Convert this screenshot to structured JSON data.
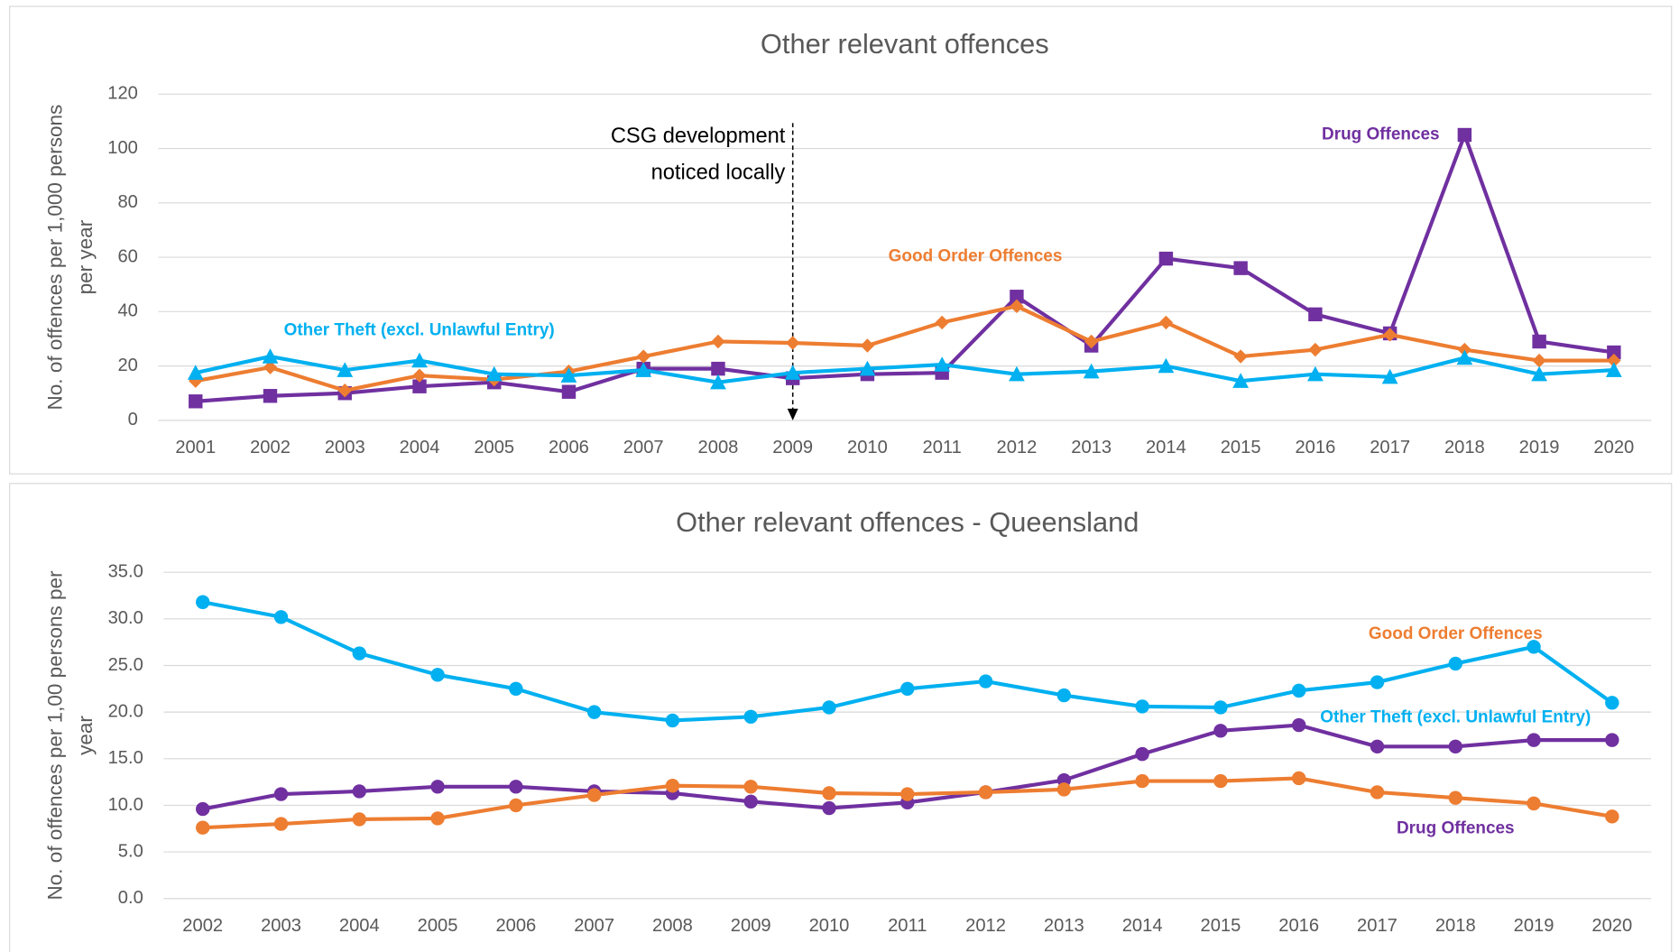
{
  "chart_data": [
    {
      "type": "line",
      "title": "Other relevant offences",
      "y_label": [
        "No. of offences per 1,000 persons",
        "per year"
      ],
      "categories": [
        "2001",
        "2002",
        "2003",
        "2004",
        "2005",
        "2006",
        "2007",
        "2008",
        "2009",
        "2010",
        "2011",
        "2012",
        "2013",
        "2014",
        "2015",
        "2016",
        "2017",
        "2018",
        "2019",
        "2020"
      ],
      "ylim": [
        0,
        120
      ],
      "yticks": [
        0,
        20,
        40,
        60,
        80,
        100,
        120
      ],
      "grid": true,
      "annotations": [
        {
          "text": [
            "CSG development",
            "noticed locally"
          ]
        }
      ],
      "series": [
        {
          "name": "Drug Offences",
          "color": "#7030a0",
          "marker": "square",
          "values": [
            7,
            9,
            10,
            12.5,
            14,
            10.5,
            19,
            19,
            15.5,
            17,
            17.5,
            45.5,
            27.5,
            59.5,
            56,
            39,
            32,
            105,
            29,
            25
          ]
        },
        {
          "name": "Good Order Offences",
          "color": "#ed7d31",
          "marker": "diamond",
          "values": [
            14.5,
            19.5,
            11,
            16.5,
            15,
            18,
            23.5,
            29,
            28.5,
            27.5,
            36,
            42,
            29,
            36,
            23.5,
            26,
            31.5,
            26,
            22,
            22
          ]
        },
        {
          "name": "Other Theft (excl. Unlawful Entry)",
          "color": "#00b0f0",
          "marker": "triangle",
          "values": [
            17.5,
            23.5,
            18.5,
            22,
            17,
            16.5,
            18.5,
            14,
            17.5,
            19,
            20.5,
            17,
            18,
            20,
            14.5,
            17,
            16,
            23,
            17,
            18.5
          ]
        }
      ]
    },
    {
      "type": "line",
      "title": "Other relevant offences - Queensland",
      "y_label": [
        "No. of offences per 1,00 persons per",
        "year"
      ],
      "categories": [
        "2002",
        "2003",
        "2004",
        "2005",
        "2006",
        "2007",
        "2008",
        "2009",
        "2010",
        "2011",
        "2012",
        "2013",
        "2014",
        "2015",
        "2016",
        "2017",
        "2018",
        "2019",
        "2020"
      ],
      "ylim": [
        0,
        35
      ],
      "yticks": [
        {
          "value": 0,
          "label": "0.0"
        },
        {
          "value": 5,
          "label": "5.0"
        },
        {
          "value": 10,
          "label": "10.0"
        },
        {
          "value": 15,
          "label": "15.0"
        },
        {
          "value": 20,
          "label": "20.0"
        },
        {
          "value": 25,
          "label": "25.0"
        },
        {
          "value": 30,
          "label": "30.0"
        },
        {
          "value": 35,
          "label": "35.0"
        }
      ],
      "grid": true,
      "series": [
        {
          "name": "Other Theft (excl. Unlawful Entry)",
          "color": "#00b0f0",
          "marker": "circle",
          "values": [
            31.8,
            30.2,
            26.3,
            24.0,
            22.5,
            20.0,
            19.1,
            19.5,
            20.5,
            22.5,
            23.3,
            21.8,
            20.6,
            20.5,
            22.3,
            23.2,
            25.2,
            27.0,
            21.0
          ]
        },
        {
          "name": "Drug Offences",
          "color": "#7030a0",
          "marker": "circle",
          "values": [
            9.6,
            11.2,
            11.5,
            12.0,
            12.0,
            11.5,
            11.3,
            10.4,
            9.7,
            10.3,
            11.4,
            12.7,
            15.5,
            18.0,
            18.6,
            16.3,
            16.3,
            17.0,
            17.0
          ]
        },
        {
          "name": "Good Order Offences",
          "color": "#ed7d31",
          "marker": "circle",
          "values": [
            7.6,
            8.0,
            8.5,
            8.6,
            10.0,
            11.1,
            12.1,
            12.0,
            11.3,
            11.2,
            11.4,
            11.7,
            12.6,
            12.6,
            12.9,
            11.4,
            10.8,
            10.2,
            8.8
          ]
        }
      ]
    }
  ]
}
